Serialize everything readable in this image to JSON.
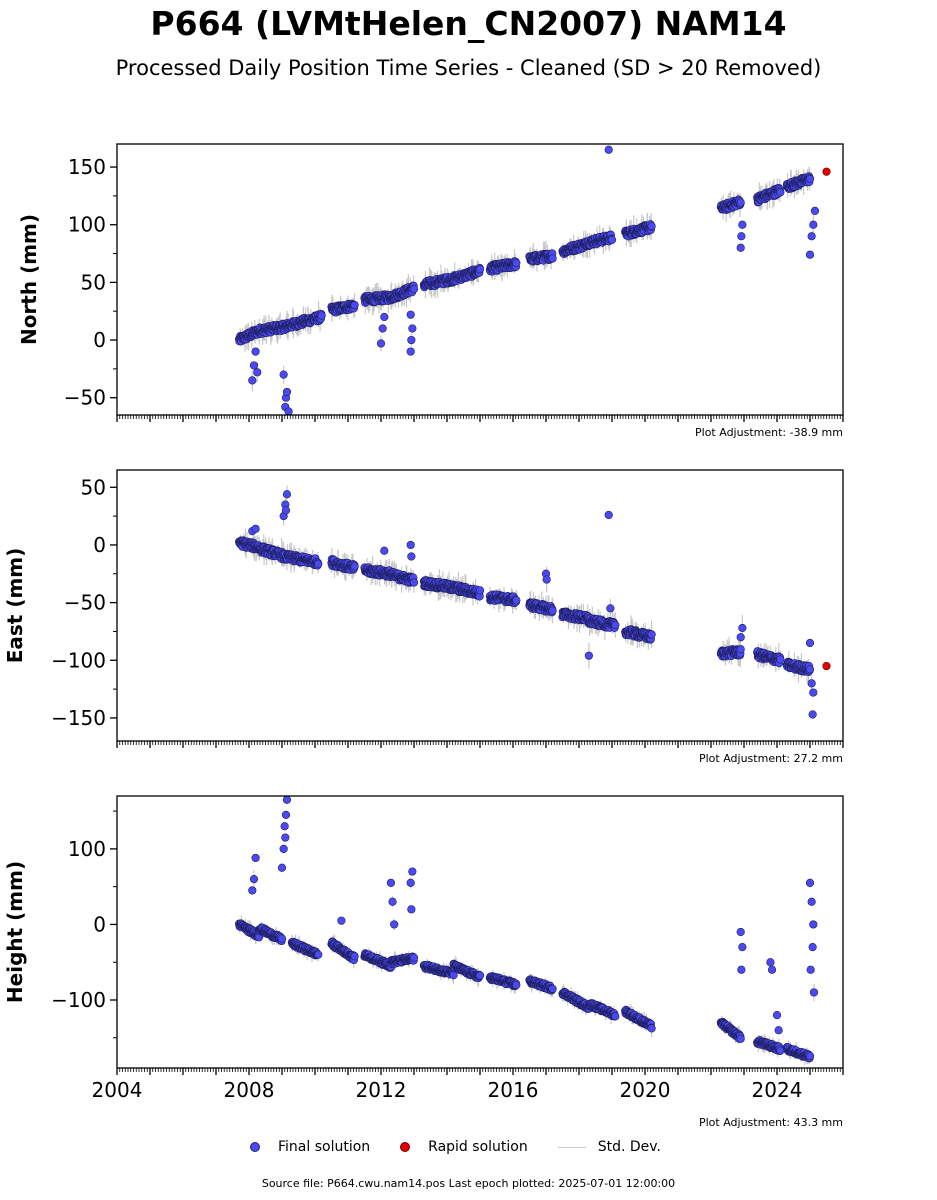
{
  "title": "P664 (LVMtHelen_CN2007) NAM14",
  "subtitle": "Processed Daily Position Time Series - Cleaned (SD > 20 Removed)",
  "legend": {
    "final": "Final solution",
    "rapid": "Rapid solution",
    "stddev": "Std. Dev."
  },
  "colors": {
    "final": "#4a4af0",
    "final_edge": "#1f1f60",
    "rapid": "#e00000",
    "stddev": "#c8c8c8"
  },
  "source_text": "Source file: P664.cwu.nam14.pos  Last epoch plotted: 2025-07-01 12:00:00",
  "chart_data": [
    {
      "type": "scatter",
      "id": "north",
      "ylabel": "North (mm)",
      "xlim": [
        2004.0,
        2026.0
      ],
      "ylim": [
        -65,
        170
      ],
      "yticks": [
        -50,
        0,
        50,
        100,
        150
      ],
      "xticks": [],
      "adjustment": "Plot Adjustment: -38.9 mm",
      "final_segments": [
        [
          2007.7,
          2008.3,
          0,
          8
        ],
        [
          2008.3,
          2009.0,
          8,
          11
        ],
        [
          2009.0,
          2010.2,
          11,
          20
        ],
        [
          2010.5,
          2011.2,
          26,
          30
        ],
        [
          2011.5,
          2012.3,
          35,
          37
        ],
        [
          2012.3,
          2013.0,
          37,
          45
        ],
        [
          2013.3,
          2014.2,
          48,
          53
        ],
        [
          2014.2,
          2015.0,
          53,
          60
        ],
        [
          2015.3,
          2016.1,
          62,
          66
        ],
        [
          2016.5,
          2017.2,
          70,
          73
        ],
        [
          2017.5,
          2018.2,
          77,
          83
        ],
        [
          2018.2,
          2019.0,
          84,
          89
        ],
        [
          2019.4,
          2020.2,
          92,
          98
        ],
        [
          2022.3,
          2022.9,
          114,
          120
        ],
        [
          2023.4,
          2024.1,
          122,
          130
        ],
        [
          2024.3,
          2025.0,
          133,
          140
        ]
      ],
      "final_spikes": [
        [
          2008.1,
          -35
        ],
        [
          2008.15,
          -22
        ],
        [
          2008.2,
          -10
        ],
        [
          2008.25,
          -28
        ],
        [
          2009.05,
          -30
        ],
        [
          2009.1,
          -58
        ],
        [
          2009.12,
          -50
        ],
        [
          2009.15,
          -45
        ],
        [
          2009.2,
          -62
        ],
        [
          2012.0,
          -3
        ],
        [
          2012.05,
          10
        ],
        [
          2012.1,
          20
        ],
        [
          2012.9,
          -10
        ],
        [
          2012.92,
          0
        ],
        [
          2012.95,
          10
        ],
        [
          2012.9,
          22
        ],
        [
          2022.9,
          80
        ],
        [
          2022.92,
          90
        ],
        [
          2022.95,
          100
        ],
        [
          2025.0,
          74
        ],
        [
          2025.05,
          90
        ],
        [
          2025.1,
          100
        ],
        [
          2025.15,
          112
        ],
        [
          2018.9,
          165
        ]
      ],
      "rapid": [
        [
          2025.5,
          146
        ]
      ]
    },
    {
      "type": "scatter",
      "id": "east",
      "ylabel": "East (mm)",
      "xlim": [
        2004.0,
        2026.0
      ],
      "ylim": [
        -170,
        65
      ],
      "yticks": [
        -150,
        -100,
        -50,
        0,
        50
      ],
      "xticks": [],
      "adjustment": "Plot Adjustment: 27.2 mm",
      "final_segments": [
        [
          2007.7,
          2008.3,
          2,
          -2
        ],
        [
          2008.3,
          2009.0,
          -3,
          -9
        ],
        [
          2009.0,
          2010.1,
          -10,
          -15
        ],
        [
          2010.5,
          2011.2,
          -15,
          -20
        ],
        [
          2011.5,
          2012.3,
          -22,
          -25
        ],
        [
          2012.3,
          2013.0,
          -26,
          -31
        ],
        [
          2013.3,
          2014.2,
          -33,
          -37
        ],
        [
          2014.2,
          2015.0,
          -37,
          -42
        ],
        [
          2015.3,
          2016.1,
          -45,
          -48
        ],
        [
          2016.5,
          2017.2,
          -52,
          -56
        ],
        [
          2017.5,
          2018.3,
          -60,
          -64
        ],
        [
          2018.3,
          2019.1,
          -66,
          -70
        ],
        [
          2019.4,
          2020.2,
          -75,
          -80
        ],
        [
          2022.3,
          2022.9,
          -94,
          -93
        ],
        [
          2023.4,
          2024.1,
          -95,
          -100
        ],
        [
          2024.3,
          2025.0,
          -104,
          -108
        ]
      ],
      "final_spikes": [
        [
          2009.05,
          25
        ],
        [
          2009.1,
          35
        ],
        [
          2009.15,
          44
        ],
        [
          2009.12,
          30
        ],
        [
          2008.1,
          12
        ],
        [
          2008.2,
          14
        ],
        [
          2012.1,
          -5
        ],
        [
          2012.9,
          0
        ],
        [
          2012.92,
          -10
        ],
        [
          2017.0,
          -25
        ],
        [
          2017.02,
          -30
        ],
        [
          2018.3,
          -96
        ],
        [
          2018.9,
          26
        ],
        [
          2018.95,
          -55
        ],
        [
          2022.95,
          -72
        ],
        [
          2022.9,
          -80
        ],
        [
          2025.0,
          -85
        ],
        [
          2025.05,
          -120
        ],
        [
          2025.1,
          -128
        ],
        [
          2025.08,
          -147
        ]
      ],
      "rapid": [
        [
          2025.5,
          -105
        ]
      ]
    },
    {
      "type": "scatter",
      "id": "height",
      "ylabel": "Height (mm)",
      "xlim": [
        2004.0,
        2026.0
      ],
      "ylim": [
        -190,
        170
      ],
      "yticks": [
        -100,
        0,
        100
      ],
      "xticks": [
        2004,
        2008,
        2012,
        2016,
        2020,
        2024
      ],
      "adjustment": "Plot Adjustment: 43.3 mm",
      "final_segments": [
        [
          2007.7,
          2008.3,
          0,
          -15
        ],
        [
          2008.3,
          2009.0,
          -5,
          -20
        ],
        [
          2009.3,
          2010.1,
          -25,
          -40
        ],
        [
          2010.5,
          2011.2,
          -25,
          -45
        ],
        [
          2011.5,
          2012.3,
          -40,
          -55
        ],
        [
          2012.3,
          2013.0,
          -50,
          -45
        ],
        [
          2013.3,
          2014.2,
          -55,
          -65
        ],
        [
          2014.2,
          2015.0,
          -55,
          -70
        ],
        [
          2015.3,
          2016.1,
          -70,
          -80
        ],
        [
          2016.5,
          2017.2,
          -75,
          -85
        ],
        [
          2017.5,
          2018.3,
          -90,
          -110
        ],
        [
          2018.3,
          2019.1,
          -105,
          -120
        ],
        [
          2019.4,
          2020.2,
          -115,
          -135
        ],
        [
          2022.3,
          2022.9,
          -130,
          -150
        ],
        [
          2023.4,
          2024.1,
          -155,
          -165
        ],
        [
          2024.3,
          2025.0,
          -165,
          -175
        ]
      ],
      "final_spikes": [
        [
          2008.2,
          88
        ],
        [
          2008.15,
          60
        ],
        [
          2008.1,
          45
        ],
        [
          2009.0,
          75
        ],
        [
          2009.05,
          100
        ],
        [
          2009.08,
          130
        ],
        [
          2009.12,
          145
        ],
        [
          2009.15,
          165
        ],
        [
          2009.1,
          115
        ],
        [
          2012.3,
          55
        ],
        [
          2012.35,
          30
        ],
        [
          2012.4,
          0
        ],
        [
          2012.95,
          70
        ],
        [
          2012.9,
          55
        ],
        [
          2012.92,
          20
        ],
        [
          2010.8,
          5
        ],
        [
          2022.9,
          -10
        ],
        [
          2022.95,
          -30
        ],
        [
          2022.92,
          -60
        ],
        [
          2023.8,
          -50
        ],
        [
          2023.85,
          -60
        ],
        [
          2024.0,
          -120
        ],
        [
          2024.05,
          -140
        ],
        [
          2025.0,
          55
        ],
        [
          2025.05,
          30
        ],
        [
          2025.1,
          0
        ],
        [
          2025.08,
          -30
        ],
        [
          2025.02,
          -60
        ],
        [
          2025.12,
          -90
        ]
      ],
      "rapid": []
    }
  ]
}
